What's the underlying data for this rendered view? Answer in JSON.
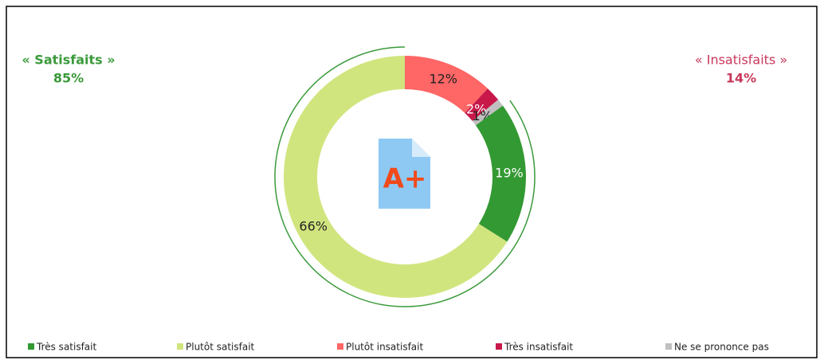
{
  "chart_data": {
    "type": "donut",
    "categories": [
      "Très satisfait",
      "Plutôt satisfait",
      "Plutôt insatisfait",
      "Très insatisfait",
      "Ne se prononce pas"
    ],
    "values": [
      19,
      66,
      12,
      2,
      1
    ],
    "value_labels": [
      "19%",
      "66%",
      "12%",
      "2%",
      "1%"
    ],
    "colors": [
      "#339933",
      "#d1e57f",
      "#ff6666",
      "#c8184a",
      "#c0c0c0"
    ],
    "label_colors": [
      "#ffffff",
      "#222222",
      "#222222",
      "#ffffff",
      "#222222"
    ],
    "groups": [
      {
        "label": "« Satisfaits »",
        "value": 85,
        "value_label": "85%",
        "color": "#3a9a3a",
        "arc": true
      },
      {
        "label": "« Insatisfaits »",
        "value": 14,
        "value_label": "14%",
        "color": "#c8375a",
        "arc": false
      }
    ],
    "icon_text": "A+"
  }
}
